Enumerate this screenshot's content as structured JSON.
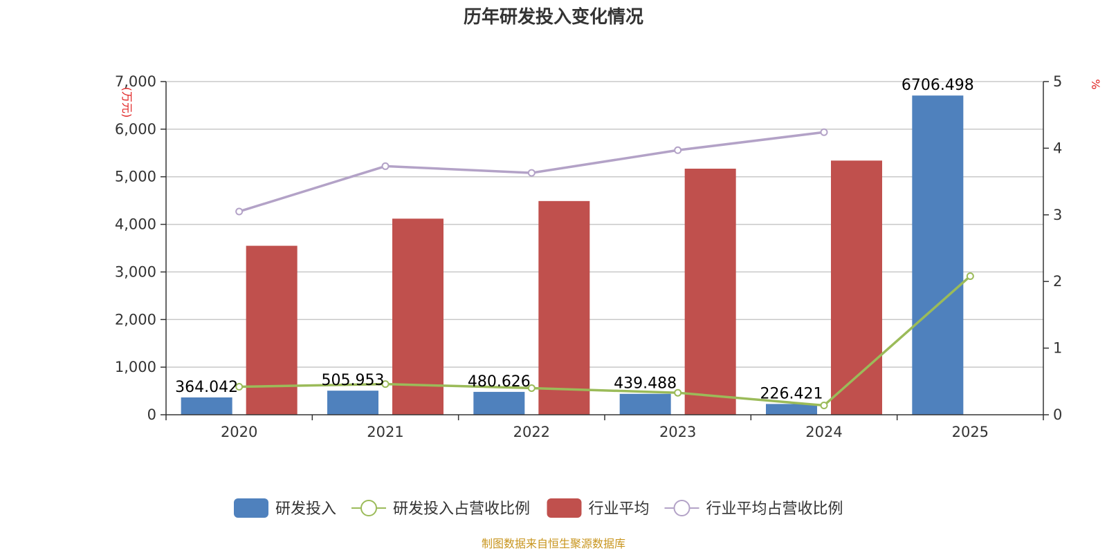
{
  "chart_data": {
    "type": "bar",
    "title": "历年研发投入变化情况",
    "source": "制图数据来自恒生聚源数据库",
    "categories": [
      "2020",
      "2021",
      "2022",
      "2023",
      "2024",
      "2025"
    ],
    "y_left": {
      "unit": "(万元)",
      "min": 0,
      "max": 7000,
      "ticks": [
        "0",
        "1,000",
        "2,000",
        "3,000",
        "4,000",
        "5,000",
        "6,000",
        "7,000"
      ]
    },
    "y_right": {
      "unit": "%",
      "min": 0,
      "max": 5,
      "ticks": [
        "0",
        "1",
        "2",
        "3",
        "4",
        "5"
      ]
    },
    "grid": true,
    "legend_position": "bottom",
    "series": [
      {
        "name": "研发投入",
        "type": "bar",
        "axis": "left",
        "color": "#4f81bd",
        "values": [
          364.042,
          505.953,
          480.626,
          439.488,
          226.421,
          6706.498
        ],
        "labels": [
          "364.042",
          "505.953",
          "480.626",
          "439.488",
          "226.421",
          "6706.498"
        ]
      },
      {
        "name": "研发投入占营收比例",
        "type": "line",
        "axis": "right",
        "color": "#9bbb59",
        "values": [
          0.42,
          0.46,
          0.4,
          0.33,
          0.14,
          2.08
        ]
      },
      {
        "name": "行业平均",
        "type": "bar",
        "axis": "left",
        "color": "#c0504d",
        "values": [
          3550,
          4120,
          4490,
          5170,
          5340,
          null
        ]
      },
      {
        "name": "行业平均占营收比例",
        "type": "line",
        "axis": "right",
        "color": "#b3a2c7",
        "values": [
          3.05,
          3.73,
          3.63,
          3.97,
          4.24,
          null
        ]
      }
    ]
  }
}
